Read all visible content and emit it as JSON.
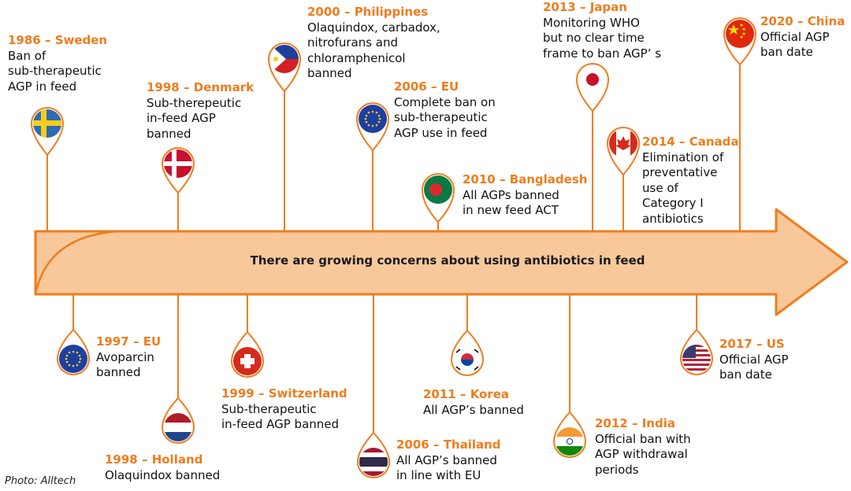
{
  "banner": "There are growing concerns about using antibiotics in feed",
  "credit": "Photo: Alltech",
  "colors": {
    "accent": "#f07c1c",
    "arrow_fill": "#f9c89a",
    "arrow_stroke": "#ef7d1e"
  },
  "events_above": [
    {
      "heading": "1986 – Sweden",
      "body": "Ban of\nsub-therapeutic\nAGP in feed",
      "flag": "sweden-flag-icon"
    },
    {
      "heading": "1998 – Denmark",
      "body": "Sub-therepeutic\nin-feed AGP\nbanned",
      "flag": "denmark-flag-icon"
    },
    {
      "heading": "2000 – Philippines",
      "body": "Olaquindox, carbadox,\nnitrofurans and\nchloramphenicol\nbanned",
      "flag": "philippines-flag-icon"
    },
    {
      "heading": "2006 – EU",
      "body": "Complete ban on\nsub-therapeutic\nAGP use in feed",
      "flag": "eu-flag-icon"
    },
    {
      "heading": "2010 – Bangladesh",
      "body": "All AGPs banned\nin new feed ACT",
      "flag": "bangladesh-flag-icon"
    },
    {
      "heading": "2013 – Japan",
      "body": "Monitoring WHO\nbut no clear time\nframe to ban AGP’ s",
      "flag": "japan-flag-icon"
    },
    {
      "heading": "2014 – Canada",
      "body": "Elimination of\npreventative\nuse of\nCategory I\nantibiotics",
      "flag": "canada-flag-icon"
    },
    {
      "heading": "2020 – China",
      "body": "Official AGP\nban date",
      "flag": "china-flag-icon"
    }
  ],
  "events_below": [
    {
      "heading": "1997 – EU",
      "body": "Avoparcin\nbanned",
      "flag": "eu-flag-icon"
    },
    {
      "heading": "1998 – Holland",
      "body": "Olaquindox banned",
      "flag": "netherlands-flag-icon"
    },
    {
      "heading": "1999 – Switzerland",
      "body": "Sub-therapeutic\nin-feed AGP banned",
      "flag": "switzerland-flag-icon"
    },
    {
      "heading": "2006 – Thailand",
      "body": "All AGP’s banned\nin line with EU",
      "flag": "thailand-flag-icon"
    },
    {
      "heading": "2011 – Korea",
      "body": "All AGP’s banned",
      "flag": "korea-flag-icon"
    },
    {
      "heading": "2012 – India",
      "body": "Official ban with\nAGP withdrawal\nperiods",
      "flag": "india-flag-icon"
    },
    {
      "heading": "2017 – US",
      "body": "Official AGP\nban date",
      "flag": "us-flag-icon"
    }
  ]
}
